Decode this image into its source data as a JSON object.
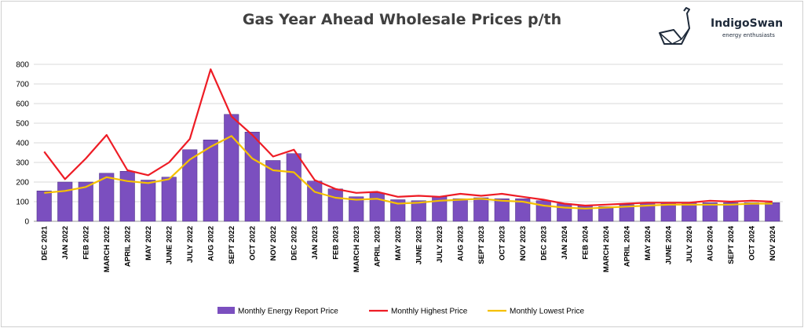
{
  "chart_data": {
    "type": "bar",
    "title": "Gas Year Ahead Wholesale Prices p/th",
    "ylim": [
      0,
      800
    ],
    "yticks": [
      0,
      100,
      200,
      300,
      400,
      500,
      600,
      700,
      800
    ],
    "grid": true,
    "legend_position": "bottom",
    "categories": [
      "DEC  2021",
      "JAN 2022",
      "FEB 2022",
      "MARCH 2022",
      "APRIL 2022",
      "MAY 2022",
      "JUNE 2022",
      "JULY 2022",
      "AUG 2022",
      "SEPT 2022",
      "OCT 2022",
      "NOV 2022",
      "DEC 2022",
      "JAN 2023",
      "FEB 2023",
      "MARCH 2023",
      "APRIL 2023",
      "MAY 2023",
      "JUNE 2023",
      "JULY 2023",
      "AUG 2023",
      "SEPT 2023",
      "OCT 2023",
      "NOV 2023",
      "DEC 2023",
      "JAN 2024",
      "FEB 2024",
      "MARCH 2024",
      "APRIL 2024",
      "MAY 2024",
      "JUNE 2024",
      "JULY 2024",
      "AUG 2024",
      "SEPT 2024",
      "OCT 2024",
      "NOV 2024"
    ],
    "series": [
      {
        "name": "Monthly Energy Report Price",
        "type": "bar",
        "color": "#7b4fbf",
        "values": [
          155,
          200,
          200,
          245,
          255,
          210,
          225,
          365,
          415,
          545,
          455,
          310,
          345,
          205,
          165,
          125,
          145,
          110,
          105,
          125,
          115,
          120,
          115,
          115,
          105,
          90,
          80,
          75,
          85,
          95,
          95,
          95,
          95,
          95,
          95,
          95
        ]
      },
      {
        "name": "Monthly Highest Price",
        "type": "line",
        "color": "#ee1c25",
        "values": [
          355,
          215,
          320,
          440,
          260,
          235,
          300,
          420,
          775,
          535,
          440,
          330,
          365,
          210,
          165,
          145,
          150,
          125,
          130,
          125,
          140,
          130,
          140,
          125,
          110,
          90,
          80,
          85,
          90,
          95,
          95,
          95,
          105,
          100,
          105,
          100
        ]
      },
      {
        "name": "Monthly Lowest Price",
        "type": "line",
        "color": "#f5c000",
        "values": [
          145,
          155,
          175,
          225,
          205,
          195,
          215,
          315,
          380,
          435,
          320,
          260,
          250,
          150,
          120,
          110,
          115,
          90,
          95,
          105,
          110,
          115,
          105,
          100,
          80,
          70,
          65,
          70,
          75,
          80,
          85,
          85,
          85,
          85,
          90,
          90
        ]
      }
    ]
  },
  "brand": {
    "name": "IndigoSwan",
    "tagline": "energy enthusiasts"
  }
}
